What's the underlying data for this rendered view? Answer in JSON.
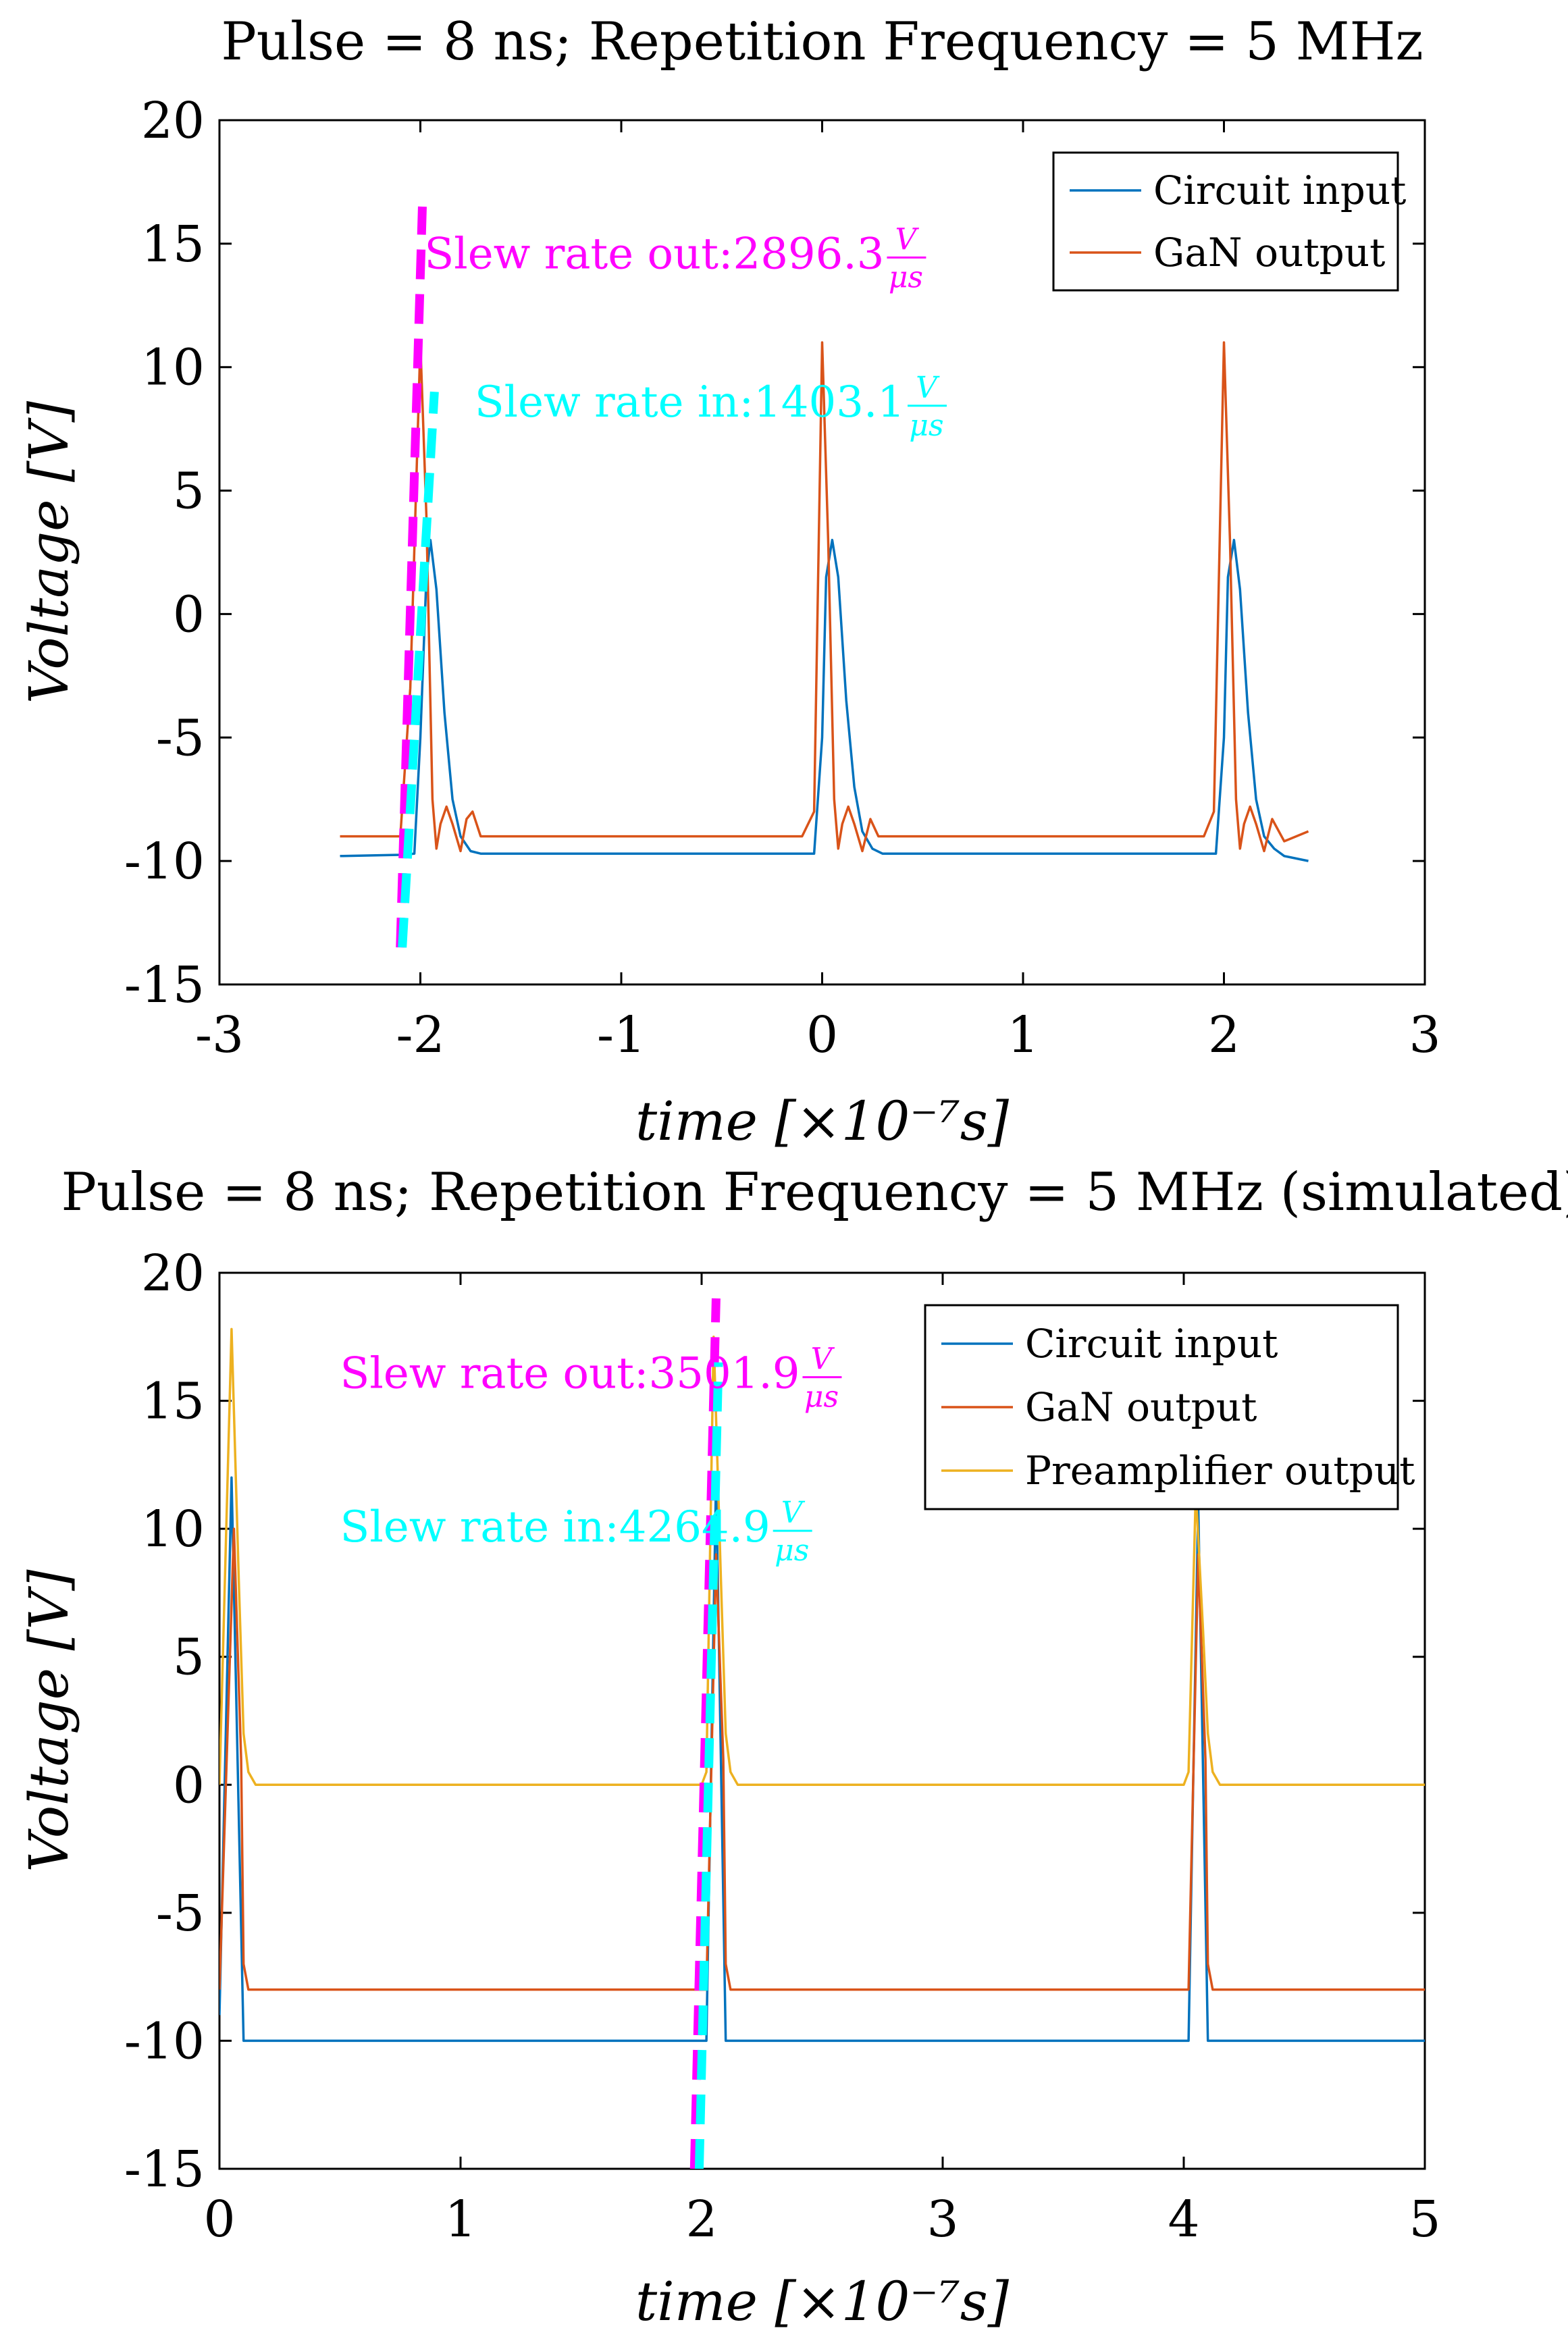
{
  "chart_data": [
    {
      "type": "line",
      "title": "Pulse = 8 ns; Repetition Frequency = 5 MHz",
      "xlabel": "time [×10⁻⁷s]",
      "ylabel": "Voltage [V]",
      "xlim": [
        -3,
        3
      ],
      "ylim": [
        -15,
        20
      ],
      "xticks": [
        "-3",
        "-2",
        "-1",
        "0",
        "1",
        "2",
        "3"
      ],
      "yticks": [
        "-15",
        "-10",
        "-5",
        "0",
        "5",
        "10",
        "15",
        "20"
      ],
      "legend_position": "top-right",
      "series": [
        {
          "name": "Circuit input",
          "color": "#0072BD",
          "x": [
            -2.4,
            -2.1,
            -2.03,
            -2.0,
            -1.97,
            -1.95,
            -1.92,
            -1.88,
            -1.84,
            -1.8,
            -1.75,
            -1.7,
            -1.0,
            -0.1,
            -0.04,
            0.0,
            0.02,
            0.05,
            0.08,
            0.12,
            0.16,
            0.2,
            0.25,
            0.3,
            1.0,
            1.9,
            1.96,
            2.0,
            2.02,
            2.05,
            2.08,
            2.12,
            2.16,
            2.2,
            2.25,
            2.3,
            2.42
          ],
          "y": [
            -9.8,
            -9.75,
            -9.7,
            -5.0,
            1.5,
            3.0,
            1.0,
            -4.0,
            -7.5,
            -9.0,
            -9.6,
            -9.7,
            -9.7,
            -9.7,
            -9.7,
            -5.0,
            1.5,
            3.0,
            1.5,
            -3.5,
            -7.0,
            -8.8,
            -9.5,
            -9.7,
            -9.7,
            -9.7,
            -9.7,
            -5.0,
            1.5,
            3.0,
            1.0,
            -4.0,
            -7.5,
            -9.0,
            -9.5,
            -9.8,
            -10.0
          ]
        },
        {
          "name": "GaN output",
          "color": "#D95319",
          "x": [
            -2.4,
            -2.1,
            -2.05,
            -2.0,
            -1.97,
            -1.94,
            -1.92,
            -1.9,
            -1.87,
            -1.84,
            -1.8,
            -1.77,
            -1.74,
            -1.7,
            -1.0,
            -0.1,
            -0.04,
            0.0,
            0.03,
            0.06,
            0.08,
            0.1,
            0.13,
            0.16,
            0.2,
            0.24,
            0.28,
            1.0,
            1.9,
            1.95,
            2.0,
            2.03,
            2.06,
            2.08,
            2.1,
            2.13,
            2.16,
            2.2,
            2.24,
            2.3,
            2.42
          ],
          "y": [
            -9.0,
            -9.0,
            -3.0,
            11.0,
            4.0,
            -7.5,
            -9.5,
            -8.5,
            -7.8,
            -8.5,
            -9.6,
            -8.3,
            -8.0,
            -9.0,
            -9.0,
            -9.0,
            -8.0,
            11.0,
            3.0,
            -7.5,
            -9.5,
            -8.5,
            -7.8,
            -8.5,
            -9.6,
            -8.3,
            -9.0,
            -9.0,
            -9.0,
            -8.0,
            11.0,
            3.0,
            -7.5,
            -9.5,
            -8.5,
            -7.8,
            -8.5,
            -9.6,
            -8.3,
            -9.2,
            -8.8
          ]
        }
      ],
      "slew_lines": [
        {
          "name": "Slew rate out",
          "color": "#FF00FF",
          "x1": -2.1,
          "y1": -13.5,
          "x2": -1.99,
          "y2": 16.5
        },
        {
          "name": "Slew rate in",
          "color": "#00FFFF",
          "x1": -2.09,
          "y1": -13.5,
          "x2": -1.93,
          "y2": 9.0
        }
      ],
      "annotations": [
        {
          "prefix": "Slew rate out:2896.3",
          "color": "#FF00FF",
          "x": -1.98,
          "y": 14.0
        },
        {
          "prefix": "Slew rate in:1403.1",
          "color": "#00FFFF",
          "x": -1.73,
          "y": 8.0
        }
      ],
      "fraction": {
        "numerator": "V",
        "denominator": "μs"
      }
    },
    {
      "type": "line",
      "title": "Pulse = 8 ns; Repetition Frequency = 5 MHz (simulated)",
      "xlabel": "time [×10⁻⁷s]",
      "ylabel": "Voltage [V]",
      "xlim": [
        0,
        5
      ],
      "ylim": [
        -15,
        20
      ],
      "xticks": [
        "0",
        "1",
        "2",
        "3",
        "4",
        "5"
      ],
      "yticks": [
        "-15",
        "-10",
        "-5",
        "0",
        "5",
        "10",
        "15",
        "20"
      ],
      "legend_position": "top-right",
      "series": [
        {
          "name": "Circuit input",
          "color": "#0072BD",
          "x": [
            0.0,
            0.0,
            0.05,
            0.1,
            0.11,
            2.0,
            2.02,
            2.06,
            2.1,
            2.11,
            4.0,
            4.02,
            4.06,
            4.1,
            4.11,
            5.0
          ],
          "y": [
            -9.0,
            -9.0,
            12.0,
            -10.0,
            -10.0,
            -10.0,
            -10.0,
            12.0,
            -10.0,
            -10.0,
            -10.0,
            -10.0,
            11.0,
            -10.0,
            -10.0,
            -10.0
          ],
          "y_start": -9.0
        },
        {
          "name": "GaN output",
          "color": "#D95319",
          "x": [
            0.0,
            0.06,
            0.09,
            0.1,
            0.12,
            2.0,
            2.02,
            2.06,
            2.09,
            2.1,
            2.12,
            4.0,
            4.02,
            4.06,
            4.09,
            4.1,
            4.12,
            5.0
          ],
          "y": [
            -8.0,
            10.0,
            1.0,
            -7.0,
            -8.0,
            -8.0,
            -8.0,
            9.0,
            1.0,
            -7.0,
            -8.0,
            -8.0,
            -8.0,
            9.0,
            1.0,
            -7.0,
            -8.0,
            -8.0
          ]
        },
        {
          "name": "Preamplifier output",
          "color": "#EDB120",
          "x": [
            0.0,
            0.05,
            0.08,
            0.1,
            0.12,
            0.15,
            2.0,
            2.02,
            2.05,
            2.08,
            2.1,
            2.12,
            2.15,
            4.0,
            4.02,
            4.05,
            4.08,
            4.1,
            4.12,
            4.15,
            5.0
          ],
          "y": [
            0.0,
            17.8,
            8.0,
            2.0,
            0.5,
            0.0,
            0.0,
            0.5,
            17.5,
            8.0,
            2.0,
            0.5,
            0.0,
            0.0,
            0.5,
            11.5,
            6.0,
            2.0,
            0.5,
            0.0,
            0.0
          ]
        }
      ],
      "slew_lines": [
        {
          "name": "Slew rate out",
          "color": "#FF00FF",
          "x1": 1.97,
          "y1": -15.0,
          "x2": 2.06,
          "y2": 19.0
        },
        {
          "name": "Slew rate in",
          "color": "#00FFFF",
          "x1": 1.99,
          "y1": -15.0,
          "x2": 2.07,
          "y2": 16.5
        }
      ],
      "annotations": [
        {
          "prefix": "Slew rate out:3501.9",
          "color": "#FF00FF",
          "x": 0.5,
          "y": 15.5
        },
        {
          "prefix": "Slew rate in:4264.9",
          "color": "#00FFFF",
          "x": 0.5,
          "y": 9.5
        }
      ],
      "fraction": {
        "numerator": "V",
        "denominator": "μs"
      }
    }
  ]
}
